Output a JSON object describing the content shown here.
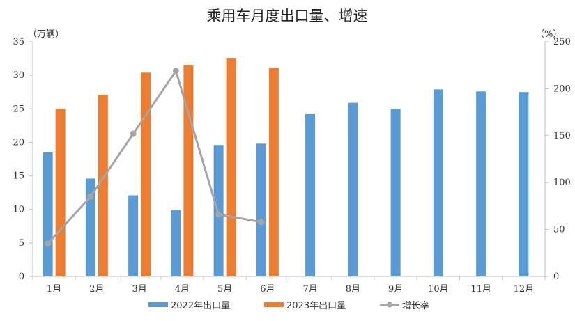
{
  "chart_data": {
    "type": "bar",
    "title": "乘用车月度出口量、增速",
    "categories": [
      "1月",
      "2月",
      "3月",
      "4月",
      "5月",
      "6月",
      "7月",
      "8月",
      "9月",
      "10月",
      "11月",
      "12月"
    ],
    "left_unit": "（万辆）",
    "right_unit": "（%）",
    "y_left": {
      "min": 0,
      "max": 35,
      "step": 5,
      "ticks": [
        "0",
        "5",
        "10",
        "15",
        "20",
        "25",
        "30",
        "35"
      ]
    },
    "y_right": {
      "min": 0,
      "max": 250,
      "step": 50,
      "ticks": [
        "0",
        "50",
        "100",
        "150",
        "200",
        "250"
      ]
    },
    "series": [
      {
        "name": "2022年出口量",
        "type": "bar",
        "axis": "left",
        "color": "#5b9bd5",
        "values": [
          18.5,
          14.6,
          12.1,
          9.9,
          19.6,
          19.8,
          24.2,
          25.9,
          25.0,
          27.9,
          27.6,
          27.5
        ]
      },
      {
        "name": "2023年出口量",
        "type": "bar",
        "axis": "left",
        "color": "#ed7d31",
        "values": [
          25.0,
          27.1,
          30.4,
          31.5,
          32.5,
          31.1,
          null,
          null,
          null,
          null,
          null,
          null
        ]
      },
      {
        "name": "增长率",
        "type": "line",
        "axis": "right",
        "color": "#a5a5a5",
        "values": [
          35,
          85,
          152,
          219,
          66,
          58,
          null,
          null,
          null,
          null,
          null,
          null
        ]
      }
    ],
    "legend_position": "bottom",
    "grid": false
  }
}
